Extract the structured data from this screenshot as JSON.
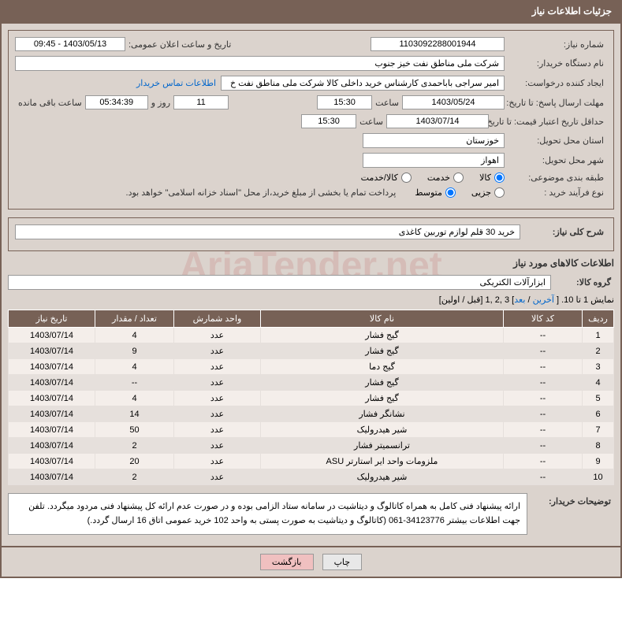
{
  "header": {
    "title": "جزئیات اطلاعات نیاز"
  },
  "info": {
    "need_number_label": "شماره نیاز:",
    "need_number": "1103092288001944",
    "announce_datetime_label": "تاریخ و ساعت اعلان عمومی:",
    "announce_datetime": "1403/05/13 - 09:45",
    "buyer_org_label": "نام دستگاه خریدار:",
    "buyer_org": "شرکت ملی مناطق نفت خیز جنوب",
    "requester_label": "ایجاد کننده درخواست:",
    "requester": "امیر  سراجی باباحمدی  کارشناس خرید داخلی کالا شرکت ملی مناطق نفت خ",
    "contact_link": "اطلاعات تماس خریدار",
    "deadline_label": "مهلت ارسال پاسخ: تا تاریخ:",
    "deadline_date": "1403/05/24",
    "time_label": "ساعت",
    "deadline_time": "15:30",
    "days_value": "11",
    "days_suffix": "روز و",
    "countdown": "05:34:39",
    "remaining_suffix": "ساعت باقی مانده",
    "validity_label": "حداقل تاریخ اعتبار قیمت: تا تاریخ:",
    "validity_date": "1403/07/14",
    "validity_time": "15:30",
    "province_label": "استان محل تحویل:",
    "province": "خوزستان",
    "city_label": "شهر محل تحویل:",
    "city": "اهواز",
    "category_label": "طبقه بندی موضوعی:",
    "cat_goods": "کالا",
    "cat_service": "خدمت",
    "cat_both": "کالا/خدمت",
    "process_label": "نوع فرآیند خرید :",
    "proc_partial": "جزیی",
    "proc_medium": "متوسط",
    "process_note": "پرداخت تمام یا بخشی از مبلغ خرید،از محل \"اسناد خزانه اسلامی\" خواهد بود.",
    "summary_label": "شرح کلی نیاز:",
    "summary": "خرید 30 قلم لوازم توربین کاغذی",
    "goods_section": "اطلاعات کالاهای مورد نیاز",
    "group_label": "گروه کالا:",
    "group_value": "ابزارآلات الکتریکی"
  },
  "pagination": {
    "prefix": "نمایش 1 تا 10. [ ",
    "last": "آخرین",
    "sep": " / ",
    "next": "بعد",
    "pages": "] 3 ,2 ,1 [",
    "prev": "قبل",
    "first": "اولین",
    "suffix": "]"
  },
  "table": {
    "headers": {
      "row": "ردیف",
      "code": "کد کالا",
      "name": "نام کالا",
      "unit": "واحد شمارش",
      "qty": "تعداد / مقدار",
      "date": "تاریخ نیاز"
    },
    "rows": [
      {
        "n": "1",
        "code": "--",
        "name": "گیج فشار",
        "unit": "عدد",
        "qty": "4",
        "date": "1403/07/14"
      },
      {
        "n": "2",
        "code": "--",
        "name": "گیج فشار",
        "unit": "عدد",
        "qty": "9",
        "date": "1403/07/14"
      },
      {
        "n": "3",
        "code": "--",
        "name": "گیج دما",
        "unit": "عدد",
        "qty": "4",
        "date": "1403/07/14"
      },
      {
        "n": "4",
        "code": "--",
        "name": "گیج فشار",
        "unit": "عدد",
        "qty": "--",
        "date": "1403/07/14"
      },
      {
        "n": "5",
        "code": "--",
        "name": "گیج فشار",
        "unit": "عدد",
        "qty": "4",
        "date": "1403/07/14"
      },
      {
        "n": "6",
        "code": "--",
        "name": "نشانگر فشار",
        "unit": "عدد",
        "qty": "14",
        "date": "1403/07/14"
      },
      {
        "n": "7",
        "code": "--",
        "name": "شیر هیدرولیک",
        "unit": "عدد",
        "qty": "50",
        "date": "1403/07/14"
      },
      {
        "n": "8",
        "code": "--",
        "name": "ترانسمیتر فشار",
        "unit": "عدد",
        "qty": "2",
        "date": "1403/07/14"
      },
      {
        "n": "9",
        "code": "--",
        "name": "ملزومات واحد ایر استارتر ASU",
        "unit": "عدد",
        "qty": "20",
        "date": "1403/07/14"
      },
      {
        "n": "10",
        "code": "--",
        "name": "شیر هیدرولیک",
        "unit": "عدد",
        "qty": "2",
        "date": "1403/07/14"
      }
    ]
  },
  "description": {
    "label": "توضیحات خریدار:",
    "text": "ارائه پیشنهاد فنی کامل به همراه کاتالوگ و دیتاشیت در سامانه ستاد الزامی بوده و در صورت عدم ارائه کل پیشنهاد فنی مردود میگردد. تلفن جهت اطلاعات بیشتر 34123776-061  (کاتالوگ و دیتاشیت به صورت پستی به واحد 102 خرید عمومی اتاق 16 ارسال گردد.)"
  },
  "buttons": {
    "print": "چاپ",
    "back": "بازگشت"
  },
  "watermark": "AriaTender.net",
  "colors": {
    "primary": "#776156",
    "bg": "#dbd3cd",
    "link": "#0066cc"
  }
}
